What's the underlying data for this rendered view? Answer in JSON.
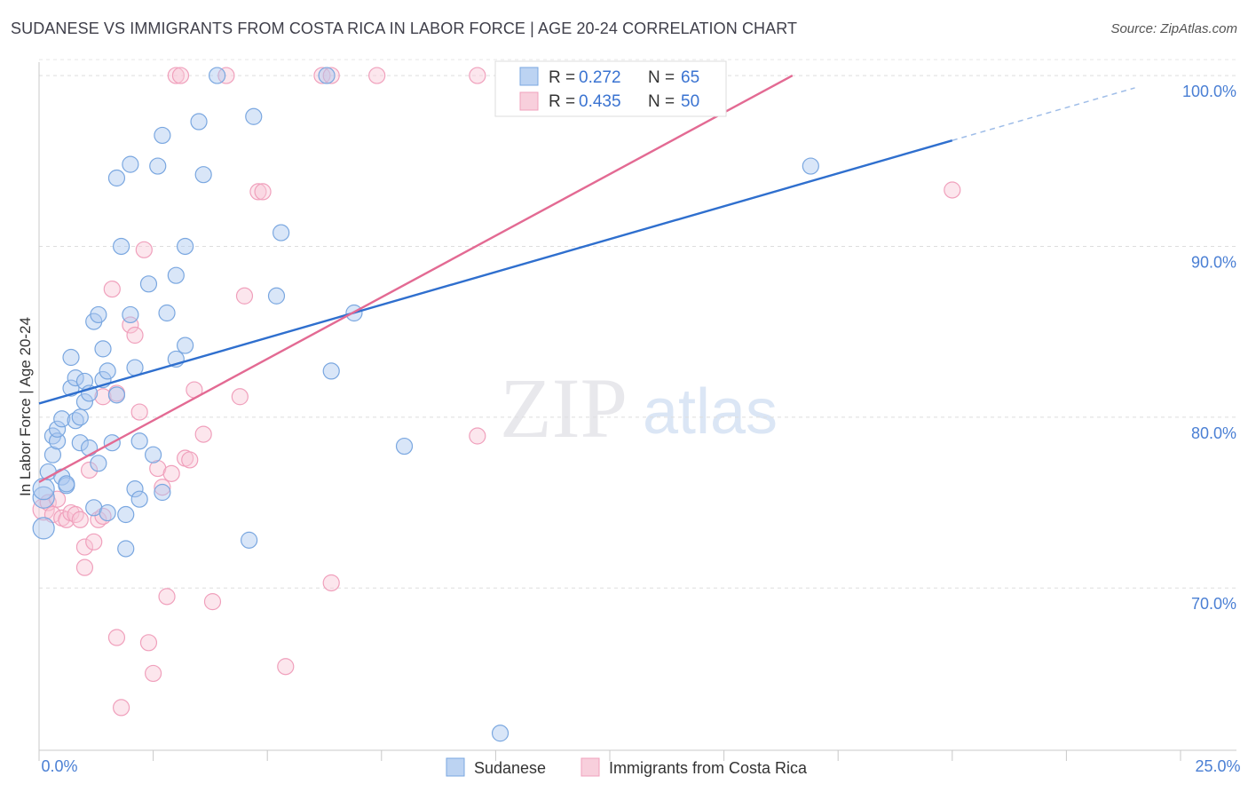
{
  "title": "SUDANESE VS IMMIGRANTS FROM COSTA RICA IN LABOR FORCE | AGE 20-24 CORRELATION CHART",
  "source": "Source: ZipAtlas.com",
  "watermark": {
    "zip": "ZIP",
    "atlas": "atlas"
  },
  "colors": {
    "blue": "#7aa7e0",
    "blue_line": "#2f6fce",
    "pink": "#f0a0bc",
    "pink_line": "#e36a93",
    "axis_label": "#4a7fd4"
  },
  "stats": [
    {
      "r_label": "R =",
      "r": "0.272",
      "n_label": "N =",
      "n": "65"
    },
    {
      "r_label": "R =",
      "r": "0.435",
      "n_label": "N =",
      "n": "50"
    }
  ],
  "chart_data": {
    "type": "scatter",
    "title": "SUDANESE VS IMMIGRANTS FROM COSTA RICA IN LABOR FORCE | AGE 20-24 CORRELATION CHART",
    "xlabel": "",
    "ylabel": "In Labor Force | Age 20-24",
    "xlim": [
      0,
      25
    ],
    "ylim": [
      60.5,
      101.2
    ],
    "x_tick_labels": [
      "0.0%",
      "25.0%"
    ],
    "y_ticks": [
      70,
      80,
      90,
      100
    ],
    "y_tick_labels": [
      "70.0%",
      "80.0%",
      "90.0%",
      "100.0%"
    ],
    "legend": [
      "Sudanese",
      "Immigrants from Costa Rica"
    ],
    "series": [
      {
        "name": "Sudanese",
        "trend": {
          "x0": 0,
          "y0": 80.8,
          "x1": 20,
          "y1": 96.2,
          "dash_to_x": 24
        },
        "points": [
          [
            0.1,
            73.5
          ],
          [
            0.1,
            75.3
          ],
          [
            0.1,
            75.8
          ],
          [
            0.2,
            76.8
          ],
          [
            0.3,
            77.8
          ],
          [
            0.3,
            78.9
          ],
          [
            0.4,
            78.6
          ],
          [
            0.4,
            79.3
          ],
          [
            0.5,
            79.9
          ],
          [
            0.5,
            76.5
          ],
          [
            0.6,
            76.0
          ],
          [
            0.6,
            76.1
          ],
          [
            0.7,
            81.7
          ],
          [
            0.7,
            83.5
          ],
          [
            0.8,
            79.8
          ],
          [
            0.8,
            82.3
          ],
          [
            0.9,
            80.0
          ],
          [
            0.9,
            78.5
          ],
          [
            1.0,
            80.9
          ],
          [
            1.0,
            82.1
          ],
          [
            1.1,
            81.4
          ],
          [
            1.1,
            78.2
          ],
          [
            1.2,
            85.6
          ],
          [
            1.2,
            74.7
          ],
          [
            1.3,
            86.0
          ],
          [
            1.3,
            77.3
          ],
          [
            1.4,
            84.0
          ],
          [
            1.4,
            82.2
          ],
          [
            1.5,
            82.7
          ],
          [
            1.5,
            74.4
          ],
          [
            1.6,
            78.5
          ],
          [
            1.7,
            81.3
          ],
          [
            1.7,
            94.0
          ],
          [
            1.8,
            90.0
          ],
          [
            1.9,
            74.3
          ],
          [
            1.9,
            72.3
          ],
          [
            2.0,
            86.0
          ],
          [
            2.0,
            94.8
          ],
          [
            2.1,
            82.9
          ],
          [
            2.1,
            75.8
          ],
          [
            2.2,
            78.6
          ],
          [
            2.2,
            75.2
          ],
          [
            2.4,
            87.8
          ],
          [
            2.5,
            77.8
          ],
          [
            2.6,
            94.7
          ],
          [
            2.7,
            96.5
          ],
          [
            2.7,
            75.6
          ],
          [
            2.8,
            86.1
          ],
          [
            3.0,
            88.3
          ],
          [
            3.0,
            83.4
          ],
          [
            3.2,
            84.2
          ],
          [
            3.2,
            90.0
          ],
          [
            3.5,
            97.3
          ],
          [
            3.6,
            94.2
          ],
          [
            3.9,
            100.0
          ],
          [
            4.7,
            97.6
          ],
          [
            4.6,
            72.8
          ],
          [
            5.2,
            87.1
          ],
          [
            5.3,
            90.8
          ],
          [
            6.3,
            100.0
          ],
          [
            6.4,
            82.7
          ],
          [
            6.9,
            86.1
          ],
          [
            8.0,
            78.3
          ],
          [
            10.1,
            61.5
          ],
          [
            16.9,
            94.7
          ]
        ]
      },
      {
        "name": "Immigrants from Costa Rica",
        "trend": {
          "x0": 0,
          "y0": 76.2,
          "x1": 16.5,
          "y1": 100.0
        },
        "points": [
          [
            0.1,
            74.6
          ],
          [
            0.2,
            75.0
          ],
          [
            0.3,
            74.3
          ],
          [
            0.4,
            75.2
          ],
          [
            0.5,
            74.1
          ],
          [
            0.6,
            74.0
          ],
          [
            0.7,
            74.4
          ],
          [
            0.8,
            74.3
          ],
          [
            0.9,
            74.0
          ],
          [
            1.0,
            72.4
          ],
          [
            1.0,
            71.2
          ],
          [
            1.1,
            76.9
          ],
          [
            1.2,
            72.7
          ],
          [
            1.3,
            74.0
          ],
          [
            1.4,
            74.2
          ],
          [
            1.4,
            81.2
          ],
          [
            1.6,
            87.5
          ],
          [
            1.7,
            81.4
          ],
          [
            1.7,
            67.1
          ],
          [
            1.8,
            63.0
          ],
          [
            2.0,
            85.4
          ],
          [
            2.1,
            84.8
          ],
          [
            2.2,
            80.3
          ],
          [
            2.3,
            89.8
          ],
          [
            2.4,
            66.8
          ],
          [
            2.5,
            65.0
          ],
          [
            2.6,
            77.0
          ],
          [
            2.7,
            75.9
          ],
          [
            2.8,
            69.5
          ],
          [
            2.9,
            76.7
          ],
          [
            3.0,
            100.0
          ],
          [
            3.1,
            100.0
          ],
          [
            3.2,
            77.6
          ],
          [
            3.3,
            77.5
          ],
          [
            3.4,
            81.6
          ],
          [
            3.6,
            79.0
          ],
          [
            3.8,
            69.2
          ],
          [
            4.1,
            100.0
          ],
          [
            4.4,
            81.2
          ],
          [
            4.5,
            87.1
          ],
          [
            4.8,
            93.2
          ],
          [
            4.9,
            93.2
          ],
          [
            5.4,
            65.4
          ],
          [
            6.2,
            100.0
          ],
          [
            6.4,
            100.0
          ],
          [
            6.4,
            70.3
          ],
          [
            7.4,
            100.0
          ],
          [
            9.6,
            100.0
          ],
          [
            9.6,
            78.9
          ],
          [
            20.0,
            93.3
          ]
        ]
      }
    ]
  }
}
